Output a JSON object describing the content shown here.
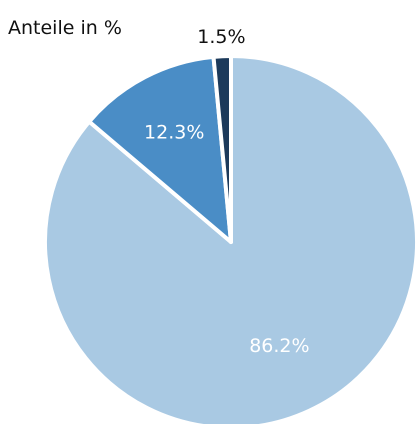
{
  "chart_data": {
    "type": "pie",
    "title": "Anteile in %",
    "slices": [
      {
        "value": 86.2,
        "label": "86.2%",
        "color": "#a9c9e3",
        "label_color": "#ffffff"
      },
      {
        "value": 12.3,
        "label": "12.3%",
        "color": "#4a8dc6",
        "label_color": "#ffffff"
      },
      {
        "value": 1.5,
        "label": "1.5%",
        "color": "#1c3a5b",
        "label_color": "#111111"
      }
    ],
    "start": "12 o'clock",
    "direction": "clockwise"
  }
}
